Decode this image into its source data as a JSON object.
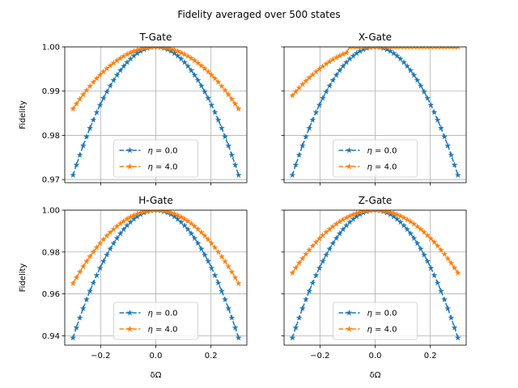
{
  "figure_title": "Fidelity averaged over 500 states",
  "colors": {
    "eta0": "#1f77b4",
    "eta4": "#ff7f0e"
  },
  "chart_data": [
    {
      "type": "line",
      "title": "T-Gate",
      "xlabel": "",
      "ylabel": "Fidelity",
      "xlim": [
        -0.33,
        0.33
      ],
      "ylim": [
        0.9693,
        1.0
      ],
      "xticks": [
        -0.2,
        0.0,
        0.2
      ],
      "xtick_labels": [
        "",
        "",
        ""
      ],
      "yticks": [
        0.97,
        0.98,
        0.99,
        1.0
      ],
      "ytick_labels": [
        "0.97",
        "0.98",
        "0.99",
        "1.00"
      ],
      "grid": true,
      "legend": "lower-center",
      "series": [
        {
          "name": "η = 0.0",
          "label_sym": "η",
          "label_eq": "=  0.0",
          "color": "#1f77b4",
          "marker": "star",
          "linestyle": "dashed",
          "curvature": 0.3222,
          "x_range": [
            -0.3,
            0.3
          ],
          "n_points": 50
        },
        {
          "name": "η = 4.0",
          "label_sym": "η",
          "label_eq": "=  4.0",
          "color": "#ff7f0e",
          "marker": "star",
          "linestyle": "dashed",
          "curvature": 0.1556,
          "x_range": [
            -0.3,
            0.3
          ],
          "n_points": 50
        }
      ]
    },
    {
      "type": "line",
      "title": "X-Gate",
      "xlabel": "",
      "ylabel": "",
      "xlim": [
        -0.33,
        0.33
      ],
      "ylim": [
        0.9693,
        1.0
      ],
      "xticks": [
        -0.2,
        0.0,
        0.2
      ],
      "xtick_labels": [
        "",
        "",
        ""
      ],
      "yticks": [
        0.97,
        0.98,
        0.99,
        1.0
      ],
      "ytick_labels": [
        "",
        "",
        "",
        ""
      ],
      "grid": true,
      "legend": "lower-center",
      "series": [
        {
          "name": "η = 0.0",
          "label_sym": "η",
          "label_eq": "=  0.0",
          "color": "#1f77b4",
          "marker": "star",
          "linestyle": "dashed",
          "curvature": 0.3222,
          "x_range": [
            -0.3,
            0.3
          ],
          "n_points": 50
        },
        {
          "name": "η = 4.0",
          "label_sym": "η",
          "label_eq": "=  4.0",
          "color": "#ff7f0e",
          "marker": "star",
          "linestyle": "dashed",
          "curvature": 0.1222,
          "x_range": [
            -0.3,
            0.3
          ],
          "n_points": 50,
          "plateau_from": -0.1,
          "plateau_value": 0.99998
        }
      ]
    },
    {
      "type": "line",
      "title": "H-Gate",
      "xlabel": "δΩ",
      "ylabel": "Fidelity",
      "xlim": [
        -0.33,
        0.33
      ],
      "ylim": [
        0.9355,
        1.0
      ],
      "xticks": [
        -0.2,
        0.0,
        0.2
      ],
      "xtick_labels": [
        "−0.2",
        "0.0",
        "0.2"
      ],
      "yticks": [
        0.94,
        0.96,
        0.98,
        1.0
      ],
      "ytick_labels": [
        "0.94",
        "0.96",
        "0.98",
        "1.00"
      ],
      "grid": true,
      "legend": "lower-center",
      "series": [
        {
          "name": "η = 0.0",
          "label_sym": "η",
          "label_eq": "=  0.0",
          "color": "#1f77b4",
          "marker": "star",
          "linestyle": "dashed",
          "curvature": 0.6778,
          "x_range": [
            -0.3,
            0.3
          ],
          "n_points": 50
        },
        {
          "name": "η = 4.0",
          "label_sym": "η",
          "label_eq": "=  4.0",
          "color": "#ff7f0e",
          "marker": "star",
          "linestyle": "dashed",
          "curvature": 0.3889,
          "x_range": [
            -0.3,
            0.3
          ],
          "n_points": 50
        }
      ]
    },
    {
      "type": "line",
      "title": "Z-Gate",
      "xlabel": "δΩ",
      "ylabel": "",
      "xlim": [
        -0.33,
        0.33
      ],
      "ylim": [
        0.9355,
        1.0
      ],
      "xticks": [
        -0.2,
        0.0,
        0.2
      ],
      "xtick_labels": [
        "−0.2",
        "0.0",
        "0.2"
      ],
      "yticks": [
        0.94,
        0.96,
        0.98,
        1.0
      ],
      "ytick_labels": [
        "",
        "",
        "",
        ""
      ],
      "grid": true,
      "legend": "lower-center",
      "series": [
        {
          "name": "η = 0.0",
          "label_sym": "η",
          "label_eq": "=  0.0",
          "color": "#1f77b4",
          "marker": "star",
          "linestyle": "dashed",
          "curvature": 0.6778,
          "x_range": [
            -0.3,
            0.3
          ],
          "n_points": 50
        },
        {
          "name": "η = 4.0",
          "label_sym": "η",
          "label_eq": "=  4.0",
          "color": "#ff7f0e",
          "marker": "star",
          "linestyle": "dashed",
          "curvature": 0.3333,
          "x_range": [
            -0.3,
            0.3
          ],
          "n_points": 50
        }
      ]
    }
  ]
}
